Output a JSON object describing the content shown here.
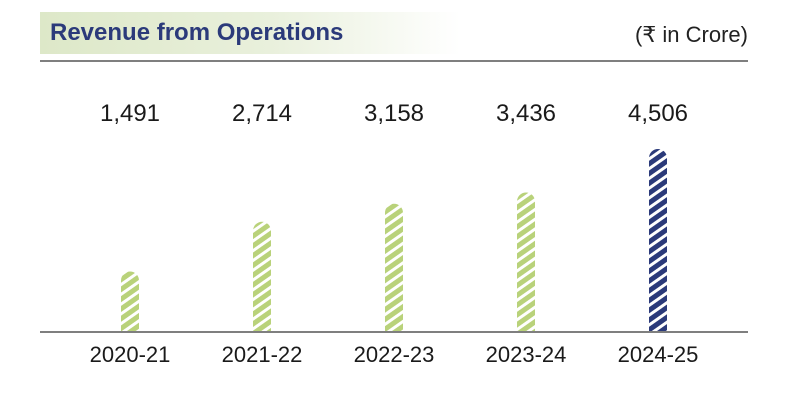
{
  "header": {
    "title": "Revenue from Operations",
    "unit": "(₹ in Crore)"
  },
  "colors": {
    "default_bar": "#b9d27a",
    "highlight_bar": "#2b3a7a",
    "title_text": "#2b3a7a"
  },
  "chart_data": {
    "type": "bar",
    "title": "Revenue from Operations",
    "ylabel": "",
    "xlabel": "",
    "unit": "(₹ in Crore)",
    "categories": [
      "2020-21",
      "2021-22",
      "2022-23",
      "2023-24",
      "2024-25"
    ],
    "values": [
      1491,
      2714,
      3158,
      3436,
      4506
    ],
    "value_labels": [
      "1,491",
      "2,714",
      "3,158",
      "3,436",
      "4,506"
    ],
    "highlight_index": 4,
    "ylim": [
      0,
      4506
    ],
    "grid": false,
    "legend": "none"
  }
}
